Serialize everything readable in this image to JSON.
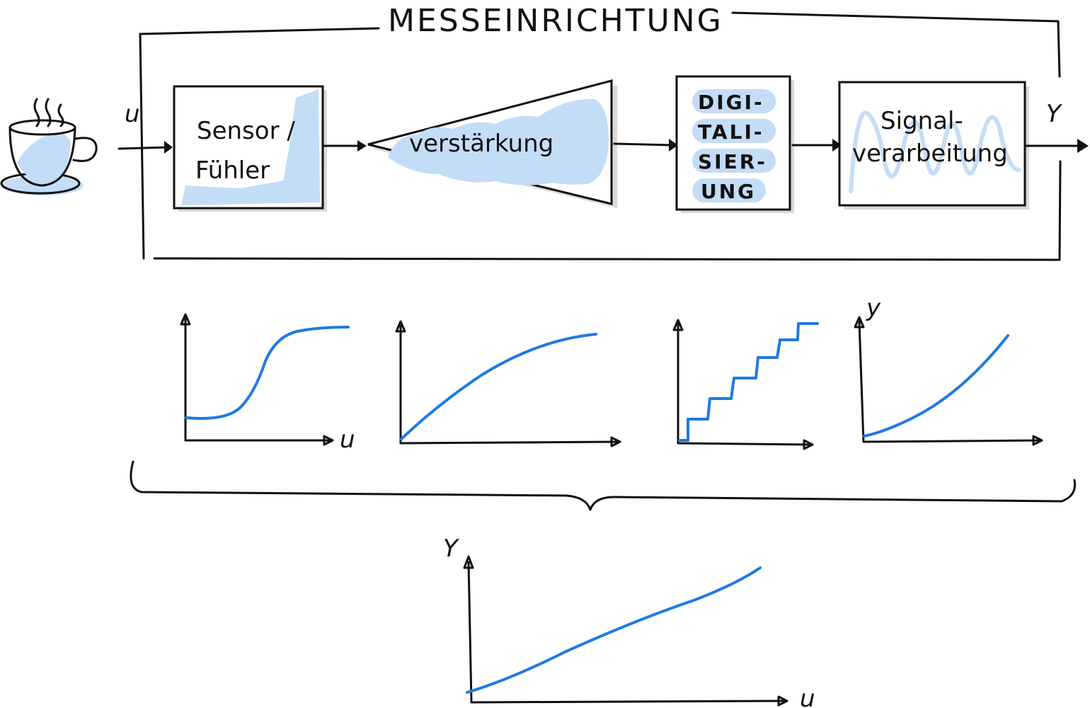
{
  "title": "MESSEINRICHTUNG",
  "input_label": "u",
  "output_label": "Y",
  "blocks": {
    "sensor": [
      "Sensor /",
      "Fühler"
    ],
    "amplifier": "verstärkung",
    "digital": [
      "DIGI-",
      "TALI-",
      "SIER-",
      "UNG"
    ],
    "signal": [
      "Signal-",
      "verarbeitung"
    ]
  },
  "axis_labels": {
    "plot1_x": "u",
    "plot4_y": "y",
    "overall_y": "Y",
    "overall_x": "u"
  },
  "colors": {
    "ink": "#111111",
    "shade": "#c4ddf6",
    "curve": "#1f7ae0"
  }
}
